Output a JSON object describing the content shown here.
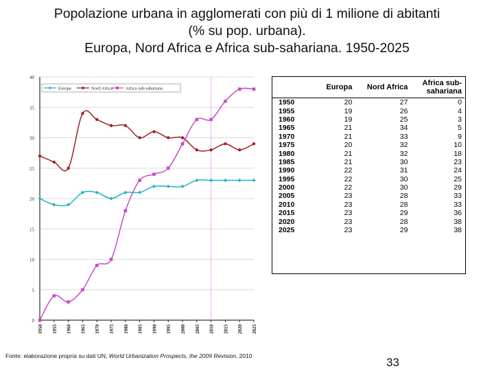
{
  "title": {
    "line1": "Popolazione urbana in agglomerati con più di 1 milione di abitanti",
    "line2": "(% su pop. urbana).",
    "line3": "Europa, Nord Africa e Africa sub-sahariana. 1950-2025"
  },
  "chart_data": {
    "type": "line",
    "x": [
      "1950",
      "1955",
      "1960",
      "1965",
      "1970",
      "1975",
      "1980",
      "1985",
      "1990",
      "1995",
      "2000",
      "2005",
      "2010",
      "2015",
      "2020",
      "2025"
    ],
    "series": [
      {
        "name": "Europa",
        "color": "#20b2c2",
        "marker": "diamond",
        "values": [
          20,
          19,
          19,
          21,
          21,
          20,
          21,
          21,
          22,
          22,
          22,
          23,
          23,
          23,
          23,
          23
        ]
      },
      {
        "name": "Nord Africa",
        "color": "#a01f2b",
        "marker": "circle",
        "values": [
          27,
          26,
          25,
          34,
          33,
          32,
          32,
          30,
          31,
          30,
          30,
          28,
          28,
          29,
          28,
          29
        ]
      },
      {
        "name": "Africa sub-sahariana",
        "color": "#c84bc8",
        "marker": "square",
        "values": [
          0,
          4,
          3,
          5,
          9,
          10,
          18,
          23,
          24,
          25,
          29,
          33,
          33,
          36,
          38,
          38
        ]
      }
    ],
    "yticks": [
      "0",
      "5",
      "10",
      "15",
      "20",
      "25",
      "30",
      "35",
      "40"
    ],
    "ylim": [
      0,
      40
    ],
    "grid": true,
    "vertical_marker_year": "2010",
    "legend_position": "top-left"
  },
  "table": {
    "headers": {
      "year": "",
      "europa": "Europa",
      "nord_africa": "Nord Africa",
      "ssa_line1": "Africa sub-",
      "ssa_line2": "sahariana"
    },
    "rows": [
      {
        "year": "1950",
        "europa": "20",
        "nord_africa": "27",
        "ssa": "0"
      },
      {
        "year": "1955",
        "europa": "19",
        "nord_africa": "26",
        "ssa": "4"
      },
      {
        "year": "1960",
        "europa": "19",
        "nord_africa": "25",
        "ssa": "3"
      },
      {
        "year": "1965",
        "europa": "21",
        "nord_africa": "34",
        "ssa": "5"
      },
      {
        "year": "1970",
        "europa": "21",
        "nord_africa": "33",
        "ssa": "9"
      },
      {
        "year": "1975",
        "europa": "20",
        "nord_africa": "32",
        "ssa": "10"
      },
      {
        "year": "1980",
        "europa": "21",
        "nord_africa": "32",
        "ssa": "18"
      },
      {
        "year": "1985",
        "europa": "21",
        "nord_africa": "30",
        "ssa": "23"
      },
      {
        "year": "1990",
        "europa": "22",
        "nord_africa": "31",
        "ssa": "24"
      },
      {
        "year": "1995",
        "europa": "22",
        "nord_africa": "30",
        "ssa": "25"
      },
      {
        "year": "2000",
        "europa": "22",
        "nord_africa": "30",
        "ssa": "29"
      },
      {
        "year": "2005",
        "europa": "23",
        "nord_africa": "28",
        "ssa": "33"
      },
      {
        "year": "2010",
        "europa": "23",
        "nord_africa": "28",
        "ssa": "33"
      },
      {
        "year": "2015",
        "europa": "23",
        "nord_africa": "29",
        "ssa": "36"
      },
      {
        "year": "2020",
        "europa": "23",
        "nord_africa": "28",
        "ssa": "38"
      },
      {
        "year": "2025",
        "europa": "23",
        "nord_africa": "29",
        "ssa": "38"
      }
    ]
  },
  "source": {
    "prefix": "Fonte: elaborazione propria su dati UN, ",
    "italic": "World Urbanization Prospects, the 2009 Revision",
    "suffix": ", 2010"
  },
  "page_number": "33"
}
